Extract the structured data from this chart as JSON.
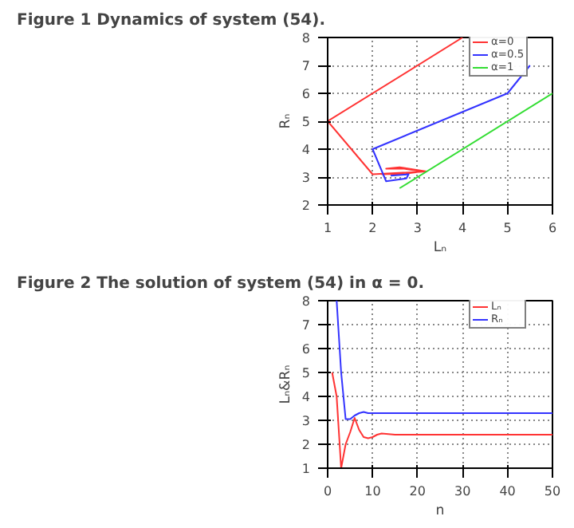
{
  "chart_data": [
    {
      "type": "line",
      "title": "Figure 1  Dynamics of system (54).",
      "xlabel": "Lₙ",
      "ylabel": "Rₙ",
      "xlim": [
        1,
        6
      ],
      "ylim": [
        2,
        8
      ],
      "xticks": [
        1,
        2,
        3,
        4,
        5,
        6
      ],
      "yticks": [
        2,
        3,
        4,
        5,
        6,
        7,
        8
      ],
      "grid": true,
      "legend": "top right",
      "series": [
        {
          "name": "α=0",
          "color": "#ff3333",
          "x": [
            4,
            1,
            2,
            3.2,
            2.6,
            2.3,
            2.7,
            3.1,
            2.7,
            2.2
          ],
          "values": [
            8,
            5,
            3.1,
            3.2,
            3.35,
            3.3,
            3.3,
            3.2,
            3.12,
            3.1
          ]
        },
        {
          "name": "α=0.5",
          "color": "#3333ff",
          "x": [
            5.5,
            5,
            2,
            2.3,
            2.75,
            2.8,
            2.4
          ],
          "values": [
            7,
            6,
            4,
            2.85,
            2.95,
            3.1,
            3.05
          ]
        },
        {
          "name": "α=1",
          "color": "#33dd33",
          "x": [
            2.6,
            6
          ],
          "values": [
            2.6,
            6
          ]
        }
      ]
    },
    {
      "type": "line",
      "title": "Figure 2  The solution of system (54) in α = 0.",
      "xlabel": "n",
      "ylabel": "Lₙ&Rₙ",
      "xlim": [
        0,
        50
      ],
      "ylim": [
        1,
        8
      ],
      "xticks": [
        0,
        10,
        20,
        30,
        40,
        50
      ],
      "yticks": [
        1,
        2,
        3,
        4,
        5,
        6,
        7,
        8
      ],
      "grid": true,
      "legend": "top right",
      "series": [
        {
          "name": "Lₙ",
          "color": "#ff3333",
          "x": [
            1,
            2,
            3,
            4,
            5,
            6,
            7,
            8,
            9,
            10,
            11,
            12,
            15,
            50
          ],
          "values": [
            5,
            4,
            1,
            2,
            2.5,
            3.1,
            2.6,
            2.3,
            2.25,
            2.3,
            2.4,
            2.45,
            2.4,
            2.4
          ]
        },
        {
          "name": "Rₙ",
          "color": "#3333ff",
          "x": [
            2,
            3,
            4,
            5,
            6,
            7,
            8,
            9,
            50
          ],
          "values": [
            8,
            5,
            3.05,
            3.05,
            3.2,
            3.3,
            3.35,
            3.3,
            3.3
          ]
        }
      ]
    }
  ]
}
